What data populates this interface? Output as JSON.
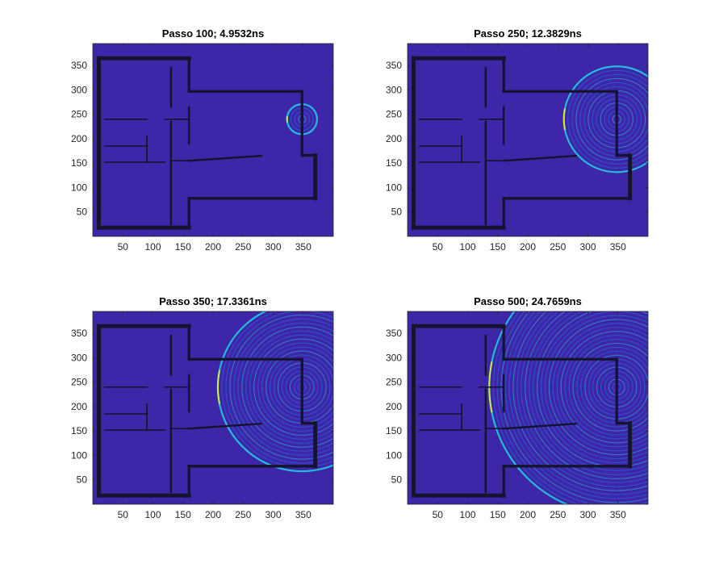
{
  "figure": {
    "background": "#ffffff",
    "colormap": "parula",
    "colors": {
      "field_background": "#3e26a8",
      "wall": "#14142e",
      "wave_blue": "#1f77e6",
      "wave_cyan": "#23c3dc",
      "wave_yellow": "#f9fb0e",
      "axis": "#262626"
    }
  },
  "chart_data": [
    {
      "type": "heatmap",
      "title": "Passo 100; 4.9532ns",
      "xlim": [
        0,
        400
      ],
      "ylim": [
        0,
        395
      ],
      "xticks": [
        50,
        100,
        150,
        200,
        250,
        300,
        350
      ],
      "yticks": [
        50,
        100,
        150,
        200,
        250,
        300,
        350
      ],
      "source": [
        348,
        240
      ],
      "wave_radius": 25,
      "step": 100,
      "time_ns": 4.9532
    },
    {
      "type": "heatmap",
      "title": "Passo 250; 12.3829ns",
      "xlim": [
        0,
        400
      ],
      "ylim": [
        0,
        395
      ],
      "xticks": [
        50,
        100,
        150,
        200,
        250,
        300,
        350
      ],
      "yticks": [
        50,
        100,
        150,
        200,
        250,
        300,
        350
      ],
      "source": [
        348,
        240
      ],
      "wave_radius": 88,
      "step": 250,
      "time_ns": 12.3829
    },
    {
      "type": "heatmap",
      "title": "Passo 350; 17.3361ns",
      "xlim": [
        0,
        400
      ],
      "ylim": [
        0,
        395
      ],
      "xticks": [
        50,
        100,
        150,
        200,
        250,
        300,
        350
      ],
      "yticks": [
        50,
        100,
        150,
        200,
        250,
        300,
        350
      ],
      "source": [
        348,
        240
      ],
      "wave_radius": 140,
      "step": 350,
      "time_ns": 17.3361
    },
    {
      "type": "heatmap",
      "title": "Passo 500; 24.7659ns",
      "xlim": [
        0,
        400
      ],
      "ylim": [
        0,
        395
      ],
      "xticks": [
        50,
        100,
        150,
        200,
        250,
        300,
        350
      ],
      "yticks": [
        50,
        100,
        150,
        200,
        250,
        300,
        350
      ],
      "source": [
        348,
        240
      ],
      "wave_radius": 212,
      "step": 500,
      "time_ns": 24.7659
    }
  ]
}
